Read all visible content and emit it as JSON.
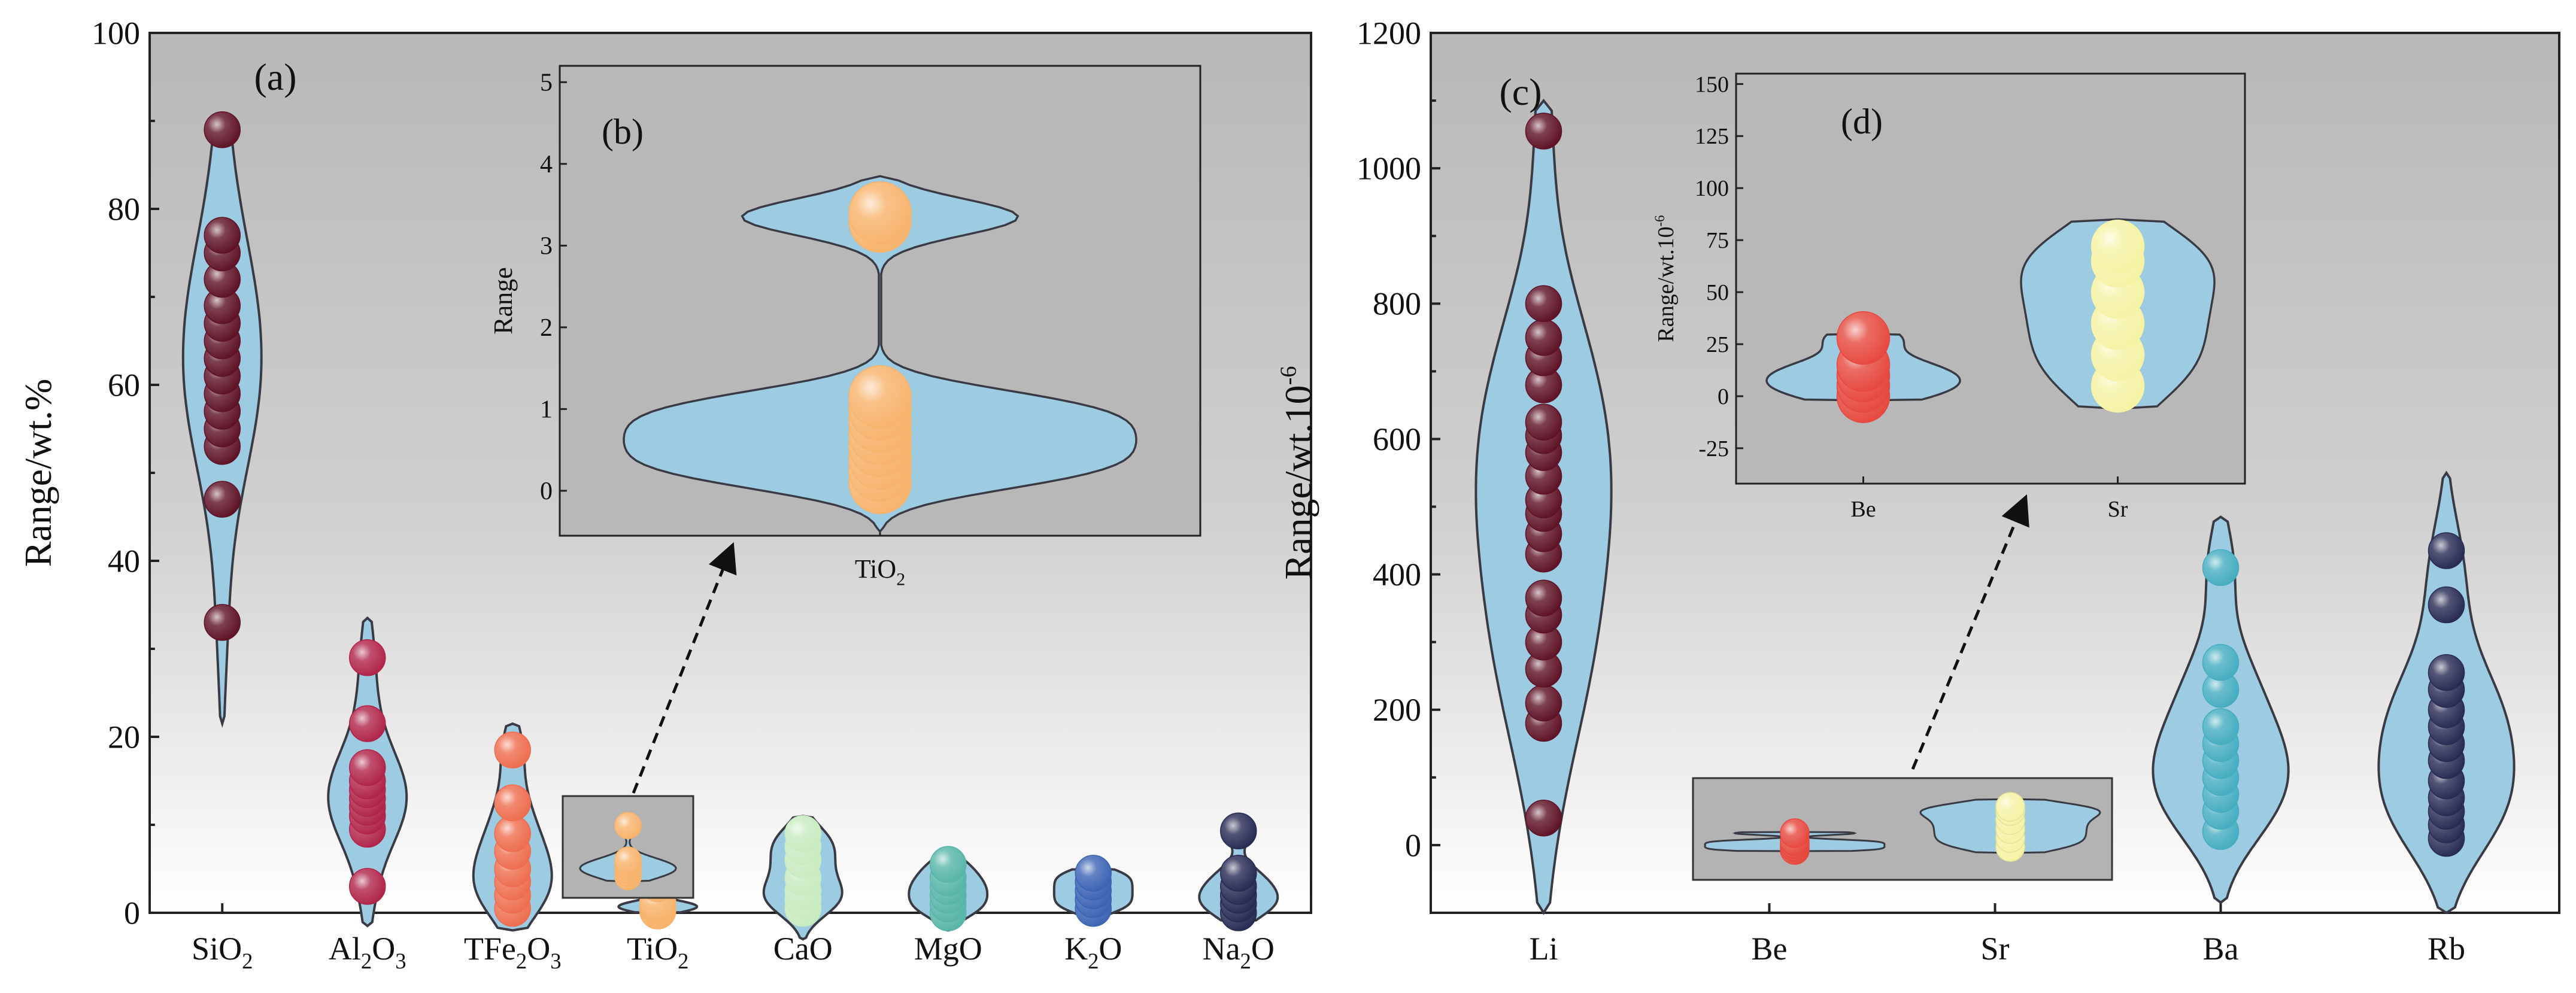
{
  "colors": {
    "violin_fill": "#9dcbe2",
    "violin_stroke": "#3a3a44",
    "SiO2": "#5e1226",
    "Al2O3": "#b0244a",
    "TFe2O3": "#ee6d4e",
    "TiO2": "#f7b36c",
    "CaO": "#c8ebc0",
    "MgO": "#57b5a7",
    "K2O": "#3c63b4",
    "Na2O": "#272a52",
    "Li": "#5e1226",
    "Be": "#e6483e",
    "Sr": "#f5f3a4",
    "Ba": "#45adc0",
    "Rb": "#272a52"
  },
  "chart_data": [
    {
      "panel": "(a)",
      "type": "violin",
      "ylabel": "Range/wt.%",
      "ylim": [
        0,
        100
      ],
      "yticks": [
        0,
        20,
        40,
        60,
        80,
        100
      ],
      "categories": [
        {
          "key": "SiO2",
          "base": "SiO",
          "sub": "2",
          "tail": "",
          "min": 21.5,
          "max": 89.5,
          "points": [
            33,
            47,
            53,
            55,
            57,
            59,
            61,
            63,
            65,
            67,
            69,
            72,
            75,
            77,
            89
          ]
        },
        {
          "key": "Al2O3",
          "base": "Al",
          "sub": "2",
          "tail": "O",
          "sub2": "3",
          "min": -1.5,
          "max": 33.5,
          "points": [
            3,
            9.5,
            11,
            12,
            13,
            14,
            15,
            16.5,
            21.5,
            29
          ]
        },
        {
          "key": "TFe2O3",
          "base": "TFe",
          "sub": "2",
          "tail": "O",
          "sub2": "3",
          "min": -2,
          "max": 21.5,
          "points": [
            0.5,
            2,
            3.5,
            5,
            7,
            9,
            12.5,
            18.5
          ]
        },
        {
          "key": "TiO2",
          "base": "TiO",
          "sub": "2",
          "tail": "",
          "min": 0,
          "max": 3.8,
          "points": [
            0.2,
            0.4,
            0.6,
            0.8,
            1.0,
            1.2,
            3.3
          ]
        },
        {
          "key": "CaO",
          "base": "CaO",
          "sub": "",
          "tail": "",
          "min": -3,
          "max": 11,
          "points": [
            0.5,
            1.5,
            2.5,
            4,
            6,
            7.5,
            9
          ]
        },
        {
          "key": "MgO",
          "base": "MgO",
          "sub": "",
          "tail": "",
          "min": -2,
          "max": 7,
          "points": [
            0,
            1,
            2,
            3,
            4,
            5.5
          ]
        },
        {
          "key": "K2O",
          "base": "K",
          "sub": "2",
          "tail": "O",
          "min": -1,
          "max": 5,
          "points": [
            0.5,
            1.5,
            2.5,
            3.5,
            4.5
          ]
        },
        {
          "key": "Na2O",
          "base": "Na",
          "sub": "2",
          "tail": "O",
          "min": -1,
          "max": 9.8,
          "points": [
            0,
            1,
            2,
            3,
            4.5,
            9.3
          ]
        }
      ]
    },
    {
      "panel": "(b)",
      "type": "violin",
      "ylabel": "Range",
      "ylim": [
        -0.55,
        5.2
      ],
      "yticks": [
        0,
        1,
        2,
        3,
        4,
        5
      ],
      "categories": [
        {
          "key": "TiO2",
          "base": "TiO",
          "sub": "2",
          "tail": "",
          "min": -0.5,
          "max": 3.85,
          "points": [
            0.1,
            0.25,
            0.4,
            0.55,
            0.7,
            0.85,
            1.0,
            1.15,
            3.3,
            3.4
          ]
        }
      ]
    },
    {
      "panel": "(c)",
      "type": "violin",
      "ylabel": "Range/wt.10",
      "ylabel_sup": "-6",
      "ylim": [
        -100,
        1200
      ],
      "yticks": [
        0,
        200,
        400,
        600,
        800,
        1000,
        1200
      ],
      "categories": [
        {
          "key": "Li",
          "label": "Li",
          "min": -100,
          "max": 1100,
          "points": [
            40,
            180,
            210,
            260,
            300,
            340,
            365,
            430,
            460,
            490,
            510,
            545,
            580,
            605,
            625,
            680,
            720,
            750,
            800,
            1055
          ]
        },
        {
          "key": "Be",
          "label": "Be",
          "min": 0,
          "max": 0,
          "points": []
        },
        {
          "key": "Sr",
          "label": "Sr",
          "min": 0,
          "max": 0,
          "points": []
        },
        {
          "key": "Ba",
          "label": "Ba",
          "min": -85,
          "max": 485,
          "points": [
            20,
            50,
            75,
            100,
            125,
            150,
            175,
            230,
            270,
            410
          ]
        },
        {
          "key": "Rb",
          "label": "Rb",
          "min": -100,
          "max": 550,
          "points": [
            10,
            30,
            50,
            70,
            95,
            125,
            150,
            175,
            200,
            230,
            255,
            355,
            435
          ]
        }
      ]
    },
    {
      "panel": "(d)",
      "type": "violin",
      "ylabel": "Range/wt.10",
      "ylabel_sup": "-6",
      "ylim": [
        -42,
        155
      ],
      "yticks": [
        -25,
        0,
        25,
        50,
        75,
        100,
        125,
        150
      ],
      "categories": [
        {
          "key": "Be",
          "label": "Be",
          "min": -2,
          "max": 30,
          "points": [
            0,
            5,
            10,
            15,
            28
          ]
        },
        {
          "key": "Sr",
          "label": "Sr",
          "min": -6,
          "max": 85,
          "points": [
            5,
            20,
            35,
            50,
            65,
            72
          ]
        }
      ]
    }
  ]
}
